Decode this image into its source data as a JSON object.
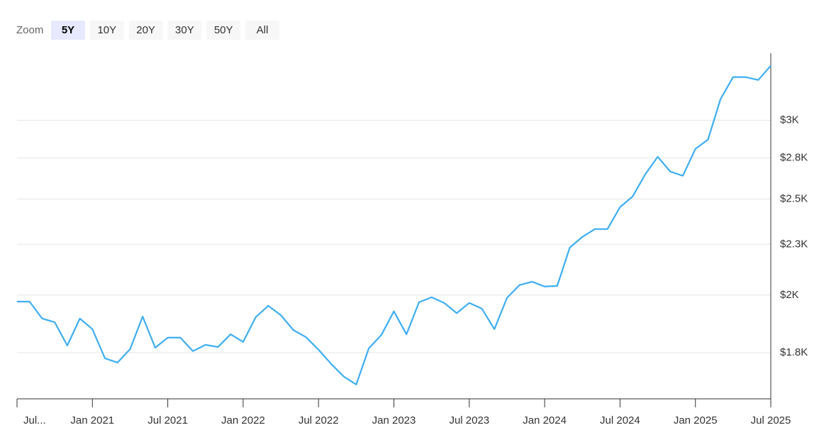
{
  "range_selector": {
    "label": "Zoom",
    "buttons": [
      "5Y",
      "10Y",
      "20Y",
      "30Y",
      "50Y",
      "All"
    ],
    "selected": 0
  },
  "chart_data": {
    "type": "line",
    "log_scale": true,
    "grid": true,
    "color": "#3eaef2",
    "x": [
      "Jul 2020",
      "Aug 2020",
      "Sep 2020",
      "Oct 2020",
      "Nov 2020",
      "Dec 2020",
      "Jan 2021",
      "Feb 2021",
      "Mar 2021",
      "Apr 2021",
      "May 2021",
      "Jun 2021",
      "Jul 2021",
      "Aug 2021",
      "Sep 2021",
      "Oct 2021",
      "Nov 2021",
      "Dec 2021",
      "Jan 2022",
      "Feb 2022",
      "Mar 2022",
      "Apr 2022",
      "May 2022",
      "Jun 2022",
      "Jul 2022",
      "Aug 2022",
      "Sep 2022",
      "Oct 2022",
      "Nov 2022",
      "Dec 2022",
      "Jan 2023",
      "Feb 2023",
      "Mar 2023",
      "Apr 2023",
      "May 2023",
      "Jun 2023",
      "Jul 2023",
      "Aug 2023",
      "Sep 2023",
      "Oct 2023",
      "Nov 2023",
      "Dec 2023",
      "Jan 2024",
      "Feb 2024",
      "Mar 2024",
      "Apr 2024",
      "May 2024",
      "Jun 2024",
      "Jul 2024",
      "Aug 2024",
      "Sep 2024",
      "Oct 2024",
      "Nov 2024",
      "Dec 2024",
      "Jan 2025",
      "Feb 2025",
      "Mar 2025",
      "Apr 2025",
      "May 2025",
      "Jun 2025",
      "Jul 2025"
    ],
    "values": [
      1970,
      1970,
      1894,
      1878,
      1779,
      1894,
      1848,
      1727,
      1710,
      1764,
      1903,
      1770,
      1812,
      1812,
      1756,
      1782,
      1773,
      1826,
      1794,
      1900,
      1951,
      1909,
      1844,
      1814,
      1762,
      1705,
      1656,
      1625,
      1767,
      1823,
      1926,
      1826,
      1967,
      1990,
      1964,
      1918,
      1964,
      1938,
      1848,
      1987,
      2047,
      2063,
      2040,
      2043,
      2233,
      2289,
      2331,
      2331,
      2453,
      2514,
      2646,
      2757,
      2664,
      2638,
      2808,
      2869,
      3152,
      3317,
      3317,
      3295,
      3406
    ],
    "ylim": [
      1572,
      3506
    ],
    "yticks": [
      {
        "value": 1750,
        "label": "$1.8K"
      },
      {
        "value": 2000,
        "label": "$2K"
      },
      {
        "value": 2250,
        "label": "$2.3K"
      },
      {
        "value": 2500,
        "label": "$2.5K"
      },
      {
        "value": 2750,
        "label": "$2.8K"
      },
      {
        "value": 3000,
        "label": "$3K"
      }
    ],
    "xticks": [
      {
        "value": "Jul 2020",
        "label": "Jul..."
      },
      "Jan 2021",
      "Jul 2021",
      "Jan 2022",
      "Jul 2022",
      "Jan 2023",
      "Jul 2023",
      "Jan 2024",
      "Jul 2024",
      "Jan 2025",
      "Jul 2025"
    ]
  }
}
